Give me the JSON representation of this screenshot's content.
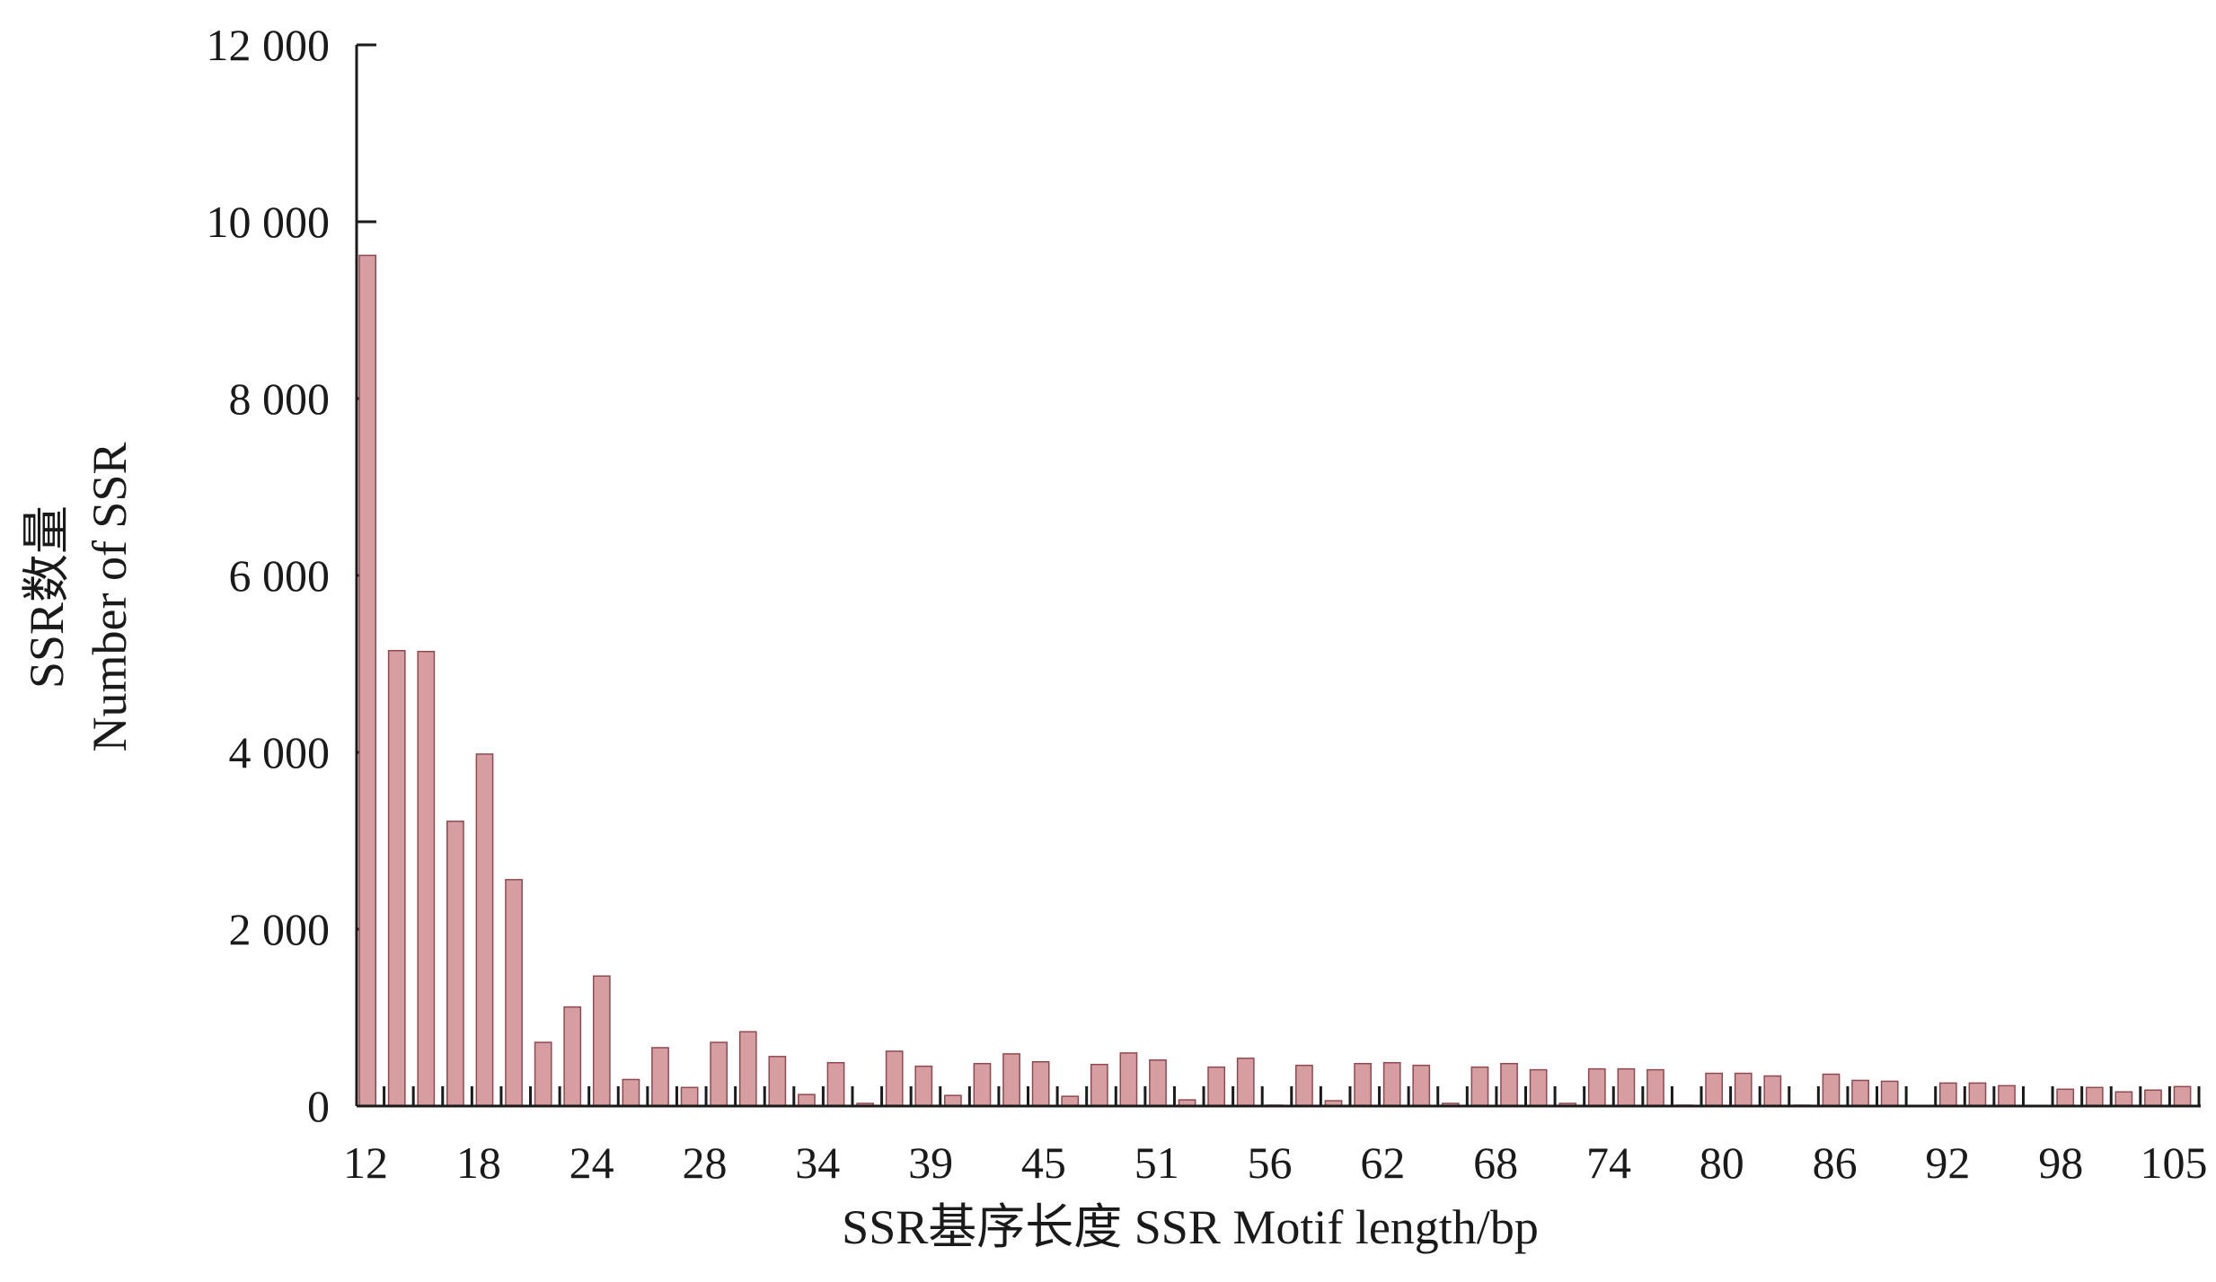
{
  "chart_data": {
    "type": "bar",
    "xlabel": "SSR基序长度  SSR Motif length/bp",
    "ylabel_line1": "SSR数量",
    "ylabel_line2": "Number of SSR",
    "ylim": [
      0,
      12000
    ],
    "yticks": [
      0,
      2000,
      4000,
      6000,
      8000,
      10000,
      12000
    ],
    "ytick_labels": [
      "0",
      "2 000",
      "4 000",
      "6 000",
      "8 000",
      "10 000",
      "12 000"
    ],
    "xtick_labels": [
      "12",
      "18",
      "24",
      "28",
      "34",
      "39",
      "45",
      "51",
      "56",
      "62",
      "68",
      "74",
      "80",
      "86",
      "92",
      "98",
      "105"
    ],
    "bar_color": "#d79ea2",
    "bar_edge_color": "#8e4a50",
    "values": [
      9620,
      5150,
      5140,
      3220,
      3980,
      2560,
      720,
      1120,
      1470,
      300,
      660,
      210,
      720,
      840,
      560,
      130,
      490,
      30,
      620,
      450,
      120,
      480,
      590,
      500,
      110,
      470,
      600,
      520,
      70,
      440,
      540,
      10,
      460,
      60,
      480,
      490,
      460,
      30,
      440,
      480,
      410,
      30,
      420,
      420,
      410,
      10,
      370,
      370,
      340,
      10,
      360,
      290,
      280,
      0,
      260,
      260,
      230,
      0,
      190,
      210,
      160,
      180,
      220
    ]
  }
}
